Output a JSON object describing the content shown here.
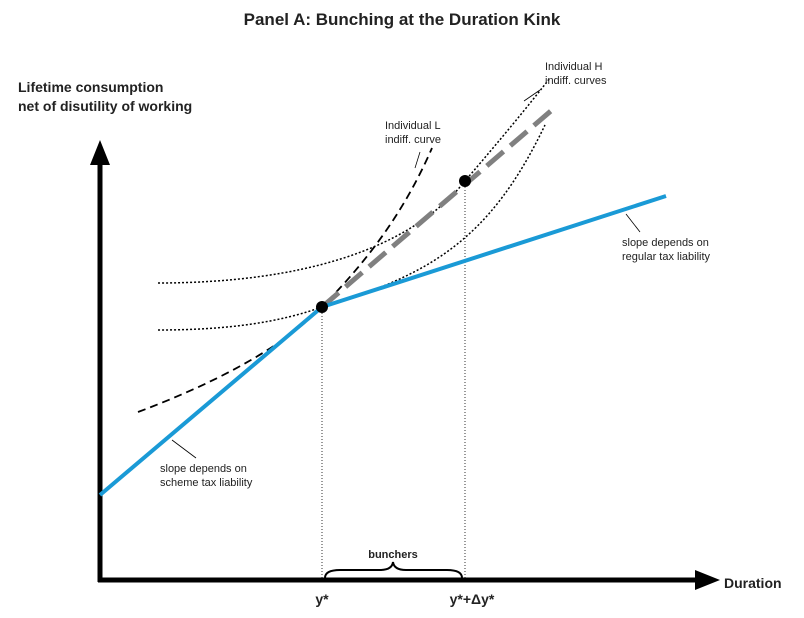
{
  "title": "Panel A: Bunching at the Duration Kink",
  "y_axis_label": [
    "Lifetime consumption",
    "net of disutility of working"
  ],
  "x_axis_label": "Duration",
  "annotations": {
    "individual_h": [
      "Individual H",
      "indiff. curves"
    ],
    "individual_l": [
      "Individual L",
      "indiff. curve"
    ],
    "regular_slope": [
      "slope depends on",
      "regular tax liability"
    ],
    "scheme_slope": [
      "slope depends on",
      "scheme tax liability"
    ],
    "bunchers": "bunchers",
    "y_star": "y*",
    "y_star_plus": "y*+Δy*"
  }
}
